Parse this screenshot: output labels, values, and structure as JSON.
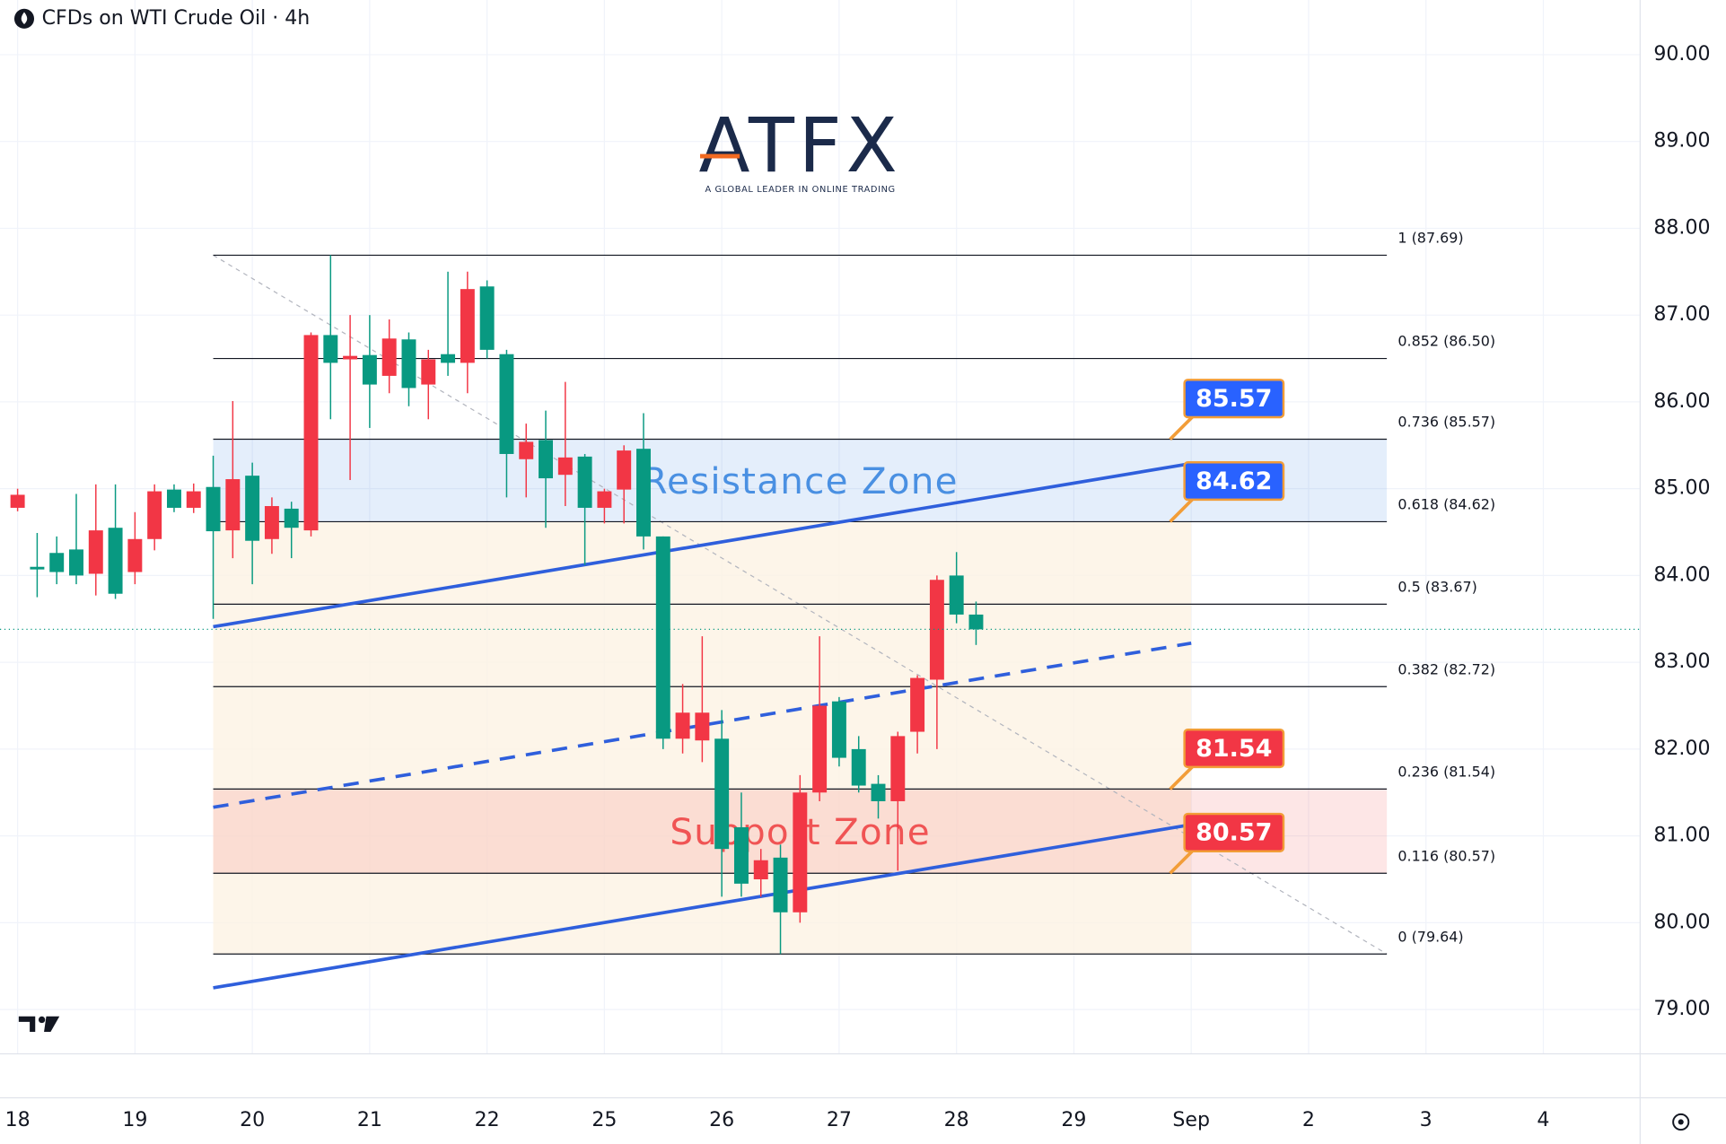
{
  "chart_data": {
    "type": "candlestick",
    "title": "CFDs on WTI Crude Oil · 4h",
    "logo": {
      "name": "ATFX",
      "tagline": "A GLOBAL LEADER IN ONLINE TRADING"
    },
    "up_color": "#f23645",
    "down_color": "#089981",
    "grid": true,
    "xlim": [
      -0.9,
      82.95
    ],
    "ylim": [
      78.49,
      90.63
    ],
    "xticks": [
      {
        "value": 0,
        "label": "18"
      },
      {
        "value": 6,
        "label": "19"
      },
      {
        "value": 12,
        "label": "20"
      },
      {
        "value": 18,
        "label": "21"
      },
      {
        "value": 24,
        "label": "22"
      },
      {
        "value": 30,
        "label": "25"
      },
      {
        "value": 36,
        "label": "26"
      },
      {
        "value": 42,
        "label": "27"
      },
      {
        "value": 48,
        "label": "28"
      },
      {
        "value": 54,
        "label": "29"
      },
      {
        "value": 60,
        "label": "Sep"
      },
      {
        "value": 66,
        "label": "2"
      },
      {
        "value": 72,
        "label": "3"
      },
      {
        "value": 78,
        "label": "4"
      }
    ],
    "yticks": [
      {
        "value": 79,
        "label": "79.00"
      },
      {
        "value": 80,
        "label": "80.00"
      },
      {
        "value": 81,
        "label": "81.00"
      },
      {
        "value": 82,
        "label": "82.00"
      },
      {
        "value": 83,
        "label": "83.00"
      },
      {
        "value": 84,
        "label": "84.00"
      },
      {
        "value": 85,
        "label": "85.00"
      },
      {
        "value": 86,
        "label": "86.00"
      },
      {
        "value": 87,
        "label": "87.00"
      },
      {
        "value": 88,
        "label": "88.00"
      },
      {
        "value": 89,
        "label": "89.00"
      },
      {
        "value": 90,
        "label": "90.00"
      }
    ],
    "x": [
      0,
      1,
      2,
      3,
      4,
      5,
      6,
      7,
      8,
      9,
      10,
      11,
      12,
      13,
      14,
      15,
      16,
      17,
      18,
      19,
      20,
      21,
      22,
      23,
      24,
      25,
      26,
      27,
      28,
      29,
      30,
      31,
      32,
      33,
      34,
      35,
      36,
      37,
      38,
      39,
      40,
      41,
      42,
      43,
      44,
      45,
      46,
      47,
      48,
      49
    ],
    "open": [
      84.78,
      84.1,
      84.26,
      84.3,
      84.02,
      84.55,
      84.04,
      84.42,
      84.99,
      84.78,
      85.02,
      84.52,
      85.15,
      84.42,
      84.77,
      84.52,
      86.77,
      86.49,
      86.54,
      86.3,
      86.72,
      86.2,
      86.55,
      86.45,
      87.33,
      86.55,
      85.34,
      85.56,
      85.16,
      85.37,
      84.78,
      84.99,
      85.46,
      84.45,
      82.12,
      82.1,
      82.12,
      81.1,
      80.5,
      80.75,
      80.12,
      81.5,
      82.55,
      82.0,
      81.6,
      81.4,
      82.2,
      82.8,
      84.0,
      83.55
    ],
    "high": [
      85.0,
      84.49,
      84.45,
      84.94,
      85.05,
      85.05,
      84.73,
      85.05,
      85.05,
      85.06,
      85.38,
      86.01,
      85.3,
      84.9,
      84.85,
      86.8,
      87.69,
      87.0,
      87.0,
      86.95,
      86.8,
      86.6,
      87.5,
      87.5,
      87.4,
      86.6,
      85.75,
      85.9,
      86.23,
      85.4,
      85.0,
      85.5,
      85.87,
      84.45,
      82.75,
      83.3,
      82.45,
      81.5,
      80.85,
      80.9,
      81.7,
      83.3,
      82.6,
      82.15,
      81.7,
      82.2,
      82.85,
      84.0,
      84.27,
      83.7
    ],
    "low": [
      84.74,
      83.75,
      83.9,
      83.9,
      83.77,
      83.73,
      83.9,
      84.29,
      84.73,
      84.72,
      83.5,
      84.2,
      83.9,
      84.25,
      84.2,
      84.45,
      85.8,
      85.1,
      85.7,
      86.1,
      85.95,
      85.8,
      86.3,
      86.1,
      86.5,
      84.9,
      84.9,
      84.55,
      84.8,
      84.12,
      84.6,
      84.6,
      84.3,
      82.0,
      81.95,
      81.85,
      80.3,
      80.3,
      80.3,
      79.64,
      80.0,
      81.4,
      81.8,
      81.5,
      81.2,
      80.6,
      81.95,
      82.0,
      83.45,
      83.2
    ],
    "close": [
      84.93,
      84.07,
      84.04,
      84.0,
      84.52,
      83.79,
      84.42,
      84.97,
      84.78,
      84.97,
      84.51,
      85.11,
      84.4,
      84.8,
      84.55,
      86.77,
      86.45,
      86.53,
      86.2,
      86.73,
      86.16,
      86.49,
      86.45,
      87.3,
      86.6,
      85.4,
      85.54,
      85.12,
      85.36,
      84.78,
      84.97,
      85.44,
      84.45,
      82.12,
      82.42,
      82.42,
      80.85,
      80.45,
      80.72,
      80.12,
      81.5,
      82.5,
      81.9,
      81.58,
      81.4,
      82.15,
      82.82,
      83.95,
      83.55,
      83.38
    ],
    "fib": {
      "x_range": [
        10,
        70
      ],
      "area_x_end": 60,
      "levels": [
        {
          "value": 87.69,
          "label": "1 (87.69)"
        },
        {
          "value": 86.5,
          "label": "0.852 (86.50)"
        },
        {
          "value": 85.57,
          "label": "0.736 (85.57)"
        },
        {
          "value": 84.62,
          "label": "0.618 (84.62)"
        },
        {
          "value": 83.67,
          "label": "0.5 (83.67)"
        },
        {
          "value": 82.72,
          "label": "0.382 (82.72)"
        },
        {
          "value": 81.54,
          "label": "0.236 (81.54)"
        },
        {
          "value": 80.57,
          "label": "0.116 (80.57)"
        },
        {
          "value": 79.64,
          "label": "0 (79.64)"
        }
      ]
    },
    "zones": [
      {
        "label": "Resistance Zone",
        "range": [
          84.62,
          85.57
        ],
        "color": "#4a90e2"
      },
      {
        "label": "Support Zone",
        "range": [
          80.57,
          81.54
        ],
        "color": "#f05454"
      }
    ],
    "trend_lines": [
      {
        "x": [
          10,
          60
        ],
        "y": [
          83.41,
          85.29
        ],
        "style": "solid",
        "color": "#2f5fdc"
      },
      {
        "x": [
          10,
          60
        ],
        "y": [
          79.25,
          81.13
        ],
        "style": "solid",
        "color": "#2f5fdc"
      },
      {
        "x": [
          10,
          60
        ],
        "y": [
          81.33,
          83.22
        ],
        "style": "dashed",
        "color": "#2f5fdc"
      }
    ],
    "price_tags": [
      {
        "value": 85.57,
        "color": "#2962ff"
      },
      {
        "value": 84.62,
        "color": "#2962ff"
      },
      {
        "value": 81.54,
        "color": "#f23645"
      },
      {
        "value": 80.57,
        "color": "#f23645"
      }
    ]
  }
}
